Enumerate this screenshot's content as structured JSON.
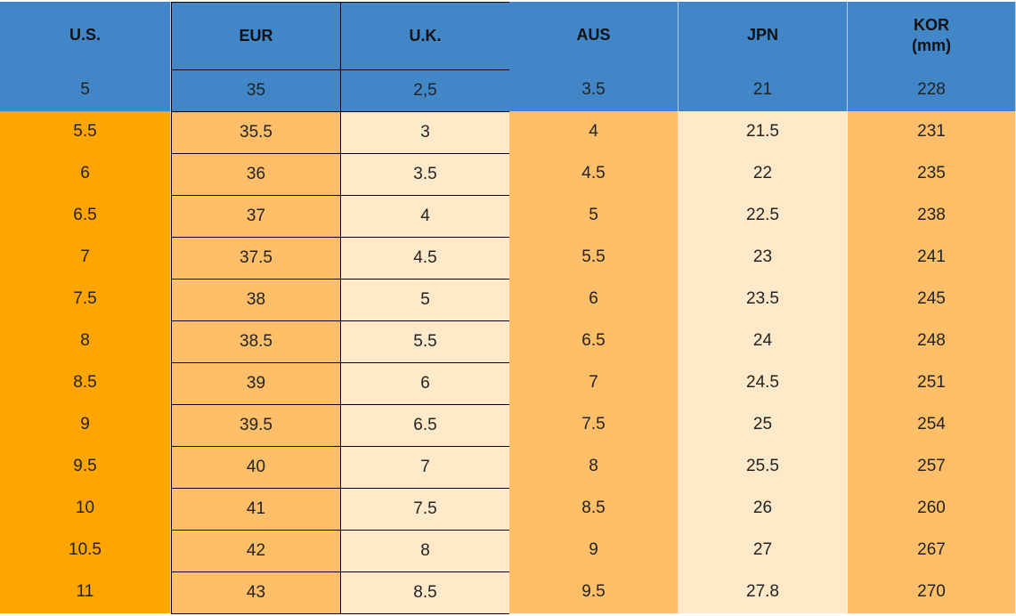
{
  "table": {
    "header": [
      "U.S.",
      "EUR",
      "U.K.",
      "AUS",
      "JPN",
      "KOR\n(mm)"
    ],
    "rows": [
      [
        "5",
        "35",
        "2,5",
        "3.5",
        "21",
        "228"
      ],
      [
        "5.5",
        "35.5",
        "3",
        "4",
        "21.5",
        "231"
      ],
      [
        "6",
        "36",
        "3.5",
        "4.5",
        "22",
        "235"
      ],
      [
        "6.5",
        "37",
        "4",
        "5",
        "22.5",
        "238"
      ],
      [
        "7",
        "37.5",
        "4.5",
        "5.5",
        "23",
        "241"
      ],
      [
        "7.5",
        "38",
        "5",
        "6",
        "23.5",
        "245"
      ],
      [
        "8",
        "38.5",
        "5.5",
        "6.5",
        "24",
        "248"
      ],
      [
        "8.5",
        "39",
        "6",
        "7",
        "24.5",
        "251"
      ],
      [
        "9",
        "39.5",
        "6.5",
        "7.5",
        "25",
        "254"
      ],
      [
        "9.5",
        "40",
        "7",
        "8",
        "25.5",
        "257"
      ],
      [
        "10",
        "41",
        "7.5",
        "8.5",
        "26",
        "260"
      ],
      [
        "10.5",
        "42",
        "8",
        "9",
        "27",
        "267"
      ],
      [
        "11",
        "43",
        "8.5",
        "9.5",
        "27.8",
        "270"
      ]
    ]
  }
}
